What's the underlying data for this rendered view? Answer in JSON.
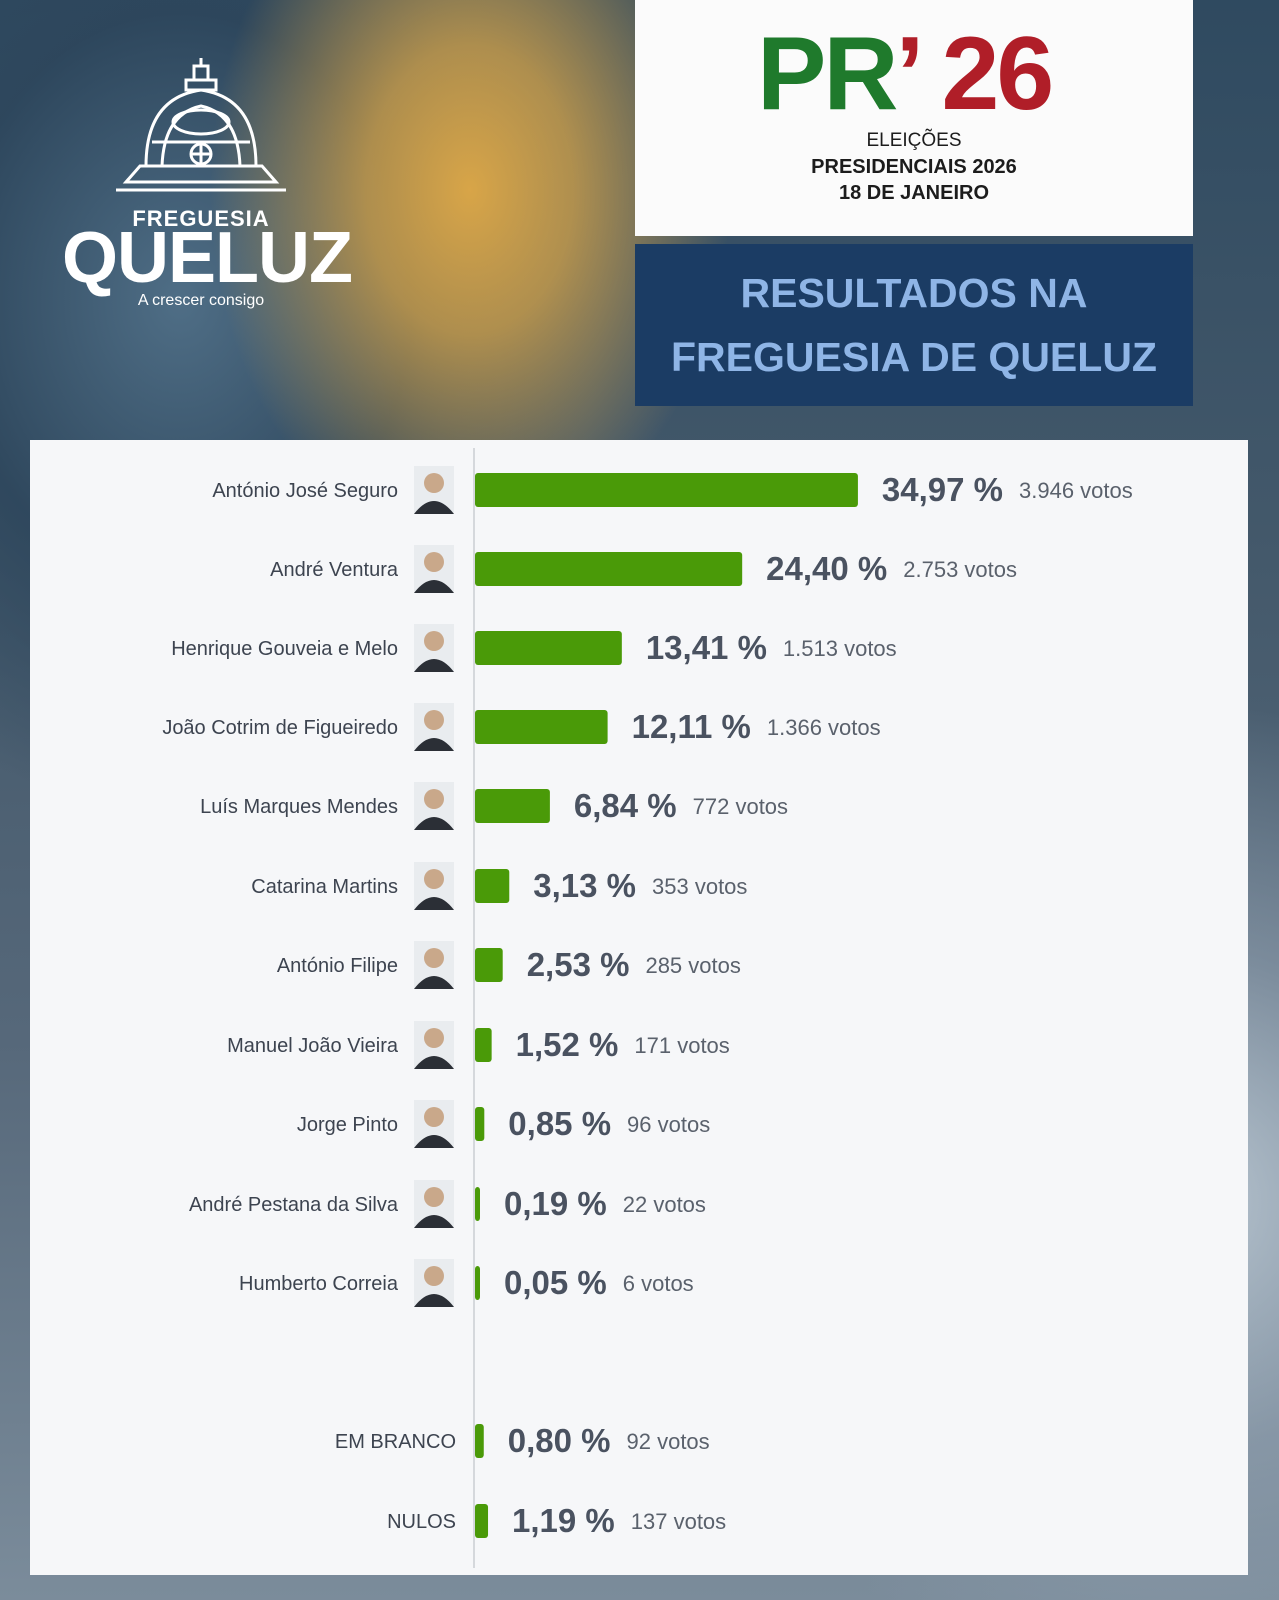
{
  "branding": {
    "logo_top": "FREGUESIA",
    "logo_main": "QUELUZ",
    "logo_tagline": "A crescer consigo"
  },
  "election": {
    "mark_pr": "PR",
    "mark_apostrophe": "’",
    "mark_year": "26",
    "line1": "ELEIÇÕES",
    "line2": "PRESIDENCIAIS 2026",
    "line3": "18 DE JANEIRO"
  },
  "headline": {
    "line1": "RESULTADOS NA",
    "line2": "FREGUESIA DE QUELUZ"
  },
  "colors": {
    "bar": "#4a9a08",
    "title_bg": "#1b3c64",
    "title_text": "#8fb5e6",
    "green_mark": "#1f7a2c",
    "red_mark": "#b01e28"
  },
  "chart_data": {
    "type": "bar",
    "orientation": "horizontal",
    "xlim": [
      0,
      100
    ],
    "grid": false,
    "series": [
      {
        "name": "António José Seguro",
        "percent": 34.97,
        "percent_label": "34,97 %",
        "votes_label": "3.946 votos",
        "has_photo": true
      },
      {
        "name": "André Ventura",
        "percent": 24.4,
        "percent_label": "24,40 %",
        "votes_label": "2.753 votos",
        "has_photo": true
      },
      {
        "name": "Henrique Gouveia e Melo",
        "percent": 13.41,
        "percent_label": "13,41 %",
        "votes_label": "1.513 votos",
        "has_photo": true
      },
      {
        "name": "João Cotrim de Figueiredo",
        "percent": 12.11,
        "percent_label": "12,11 %",
        "votes_label": "1.366 votos",
        "has_photo": true
      },
      {
        "name": "Luís Marques Mendes",
        "percent": 6.84,
        "percent_label": "6,84 %",
        "votes_label": "772 votos",
        "has_photo": true
      },
      {
        "name": "Catarina Martins",
        "percent": 3.13,
        "percent_label": "3,13 %",
        "votes_label": "353 votos",
        "has_photo": true
      },
      {
        "name": "António Filipe",
        "percent": 2.53,
        "percent_label": "2,53 %",
        "votes_label": "285 votos",
        "has_photo": true
      },
      {
        "name": "Manuel João Vieira",
        "percent": 1.52,
        "percent_label": "1,52 %",
        "votes_label": "171 votos",
        "has_photo": true
      },
      {
        "name": "Jorge Pinto",
        "percent": 0.85,
        "percent_label": "0,85 %",
        "votes_label": "96 votos",
        "has_photo": true
      },
      {
        "name": "André Pestana da Silva",
        "percent": 0.19,
        "percent_label": "0,19 %",
        "votes_label": "22 votos",
        "has_photo": true
      },
      {
        "name": "Humberto Correia",
        "percent": 0.05,
        "percent_label": "0,05 %",
        "votes_label": "6 votos",
        "has_photo": true
      },
      {
        "name": "EM BRANCO",
        "percent": 0.8,
        "percent_label": "0,80 %",
        "votes_label": "92 votos",
        "has_photo": false
      },
      {
        "name": "NULOS",
        "percent": 1.19,
        "percent_label": "1,19 %",
        "votes_label": "137 votos",
        "has_photo": false
      }
    ]
  }
}
